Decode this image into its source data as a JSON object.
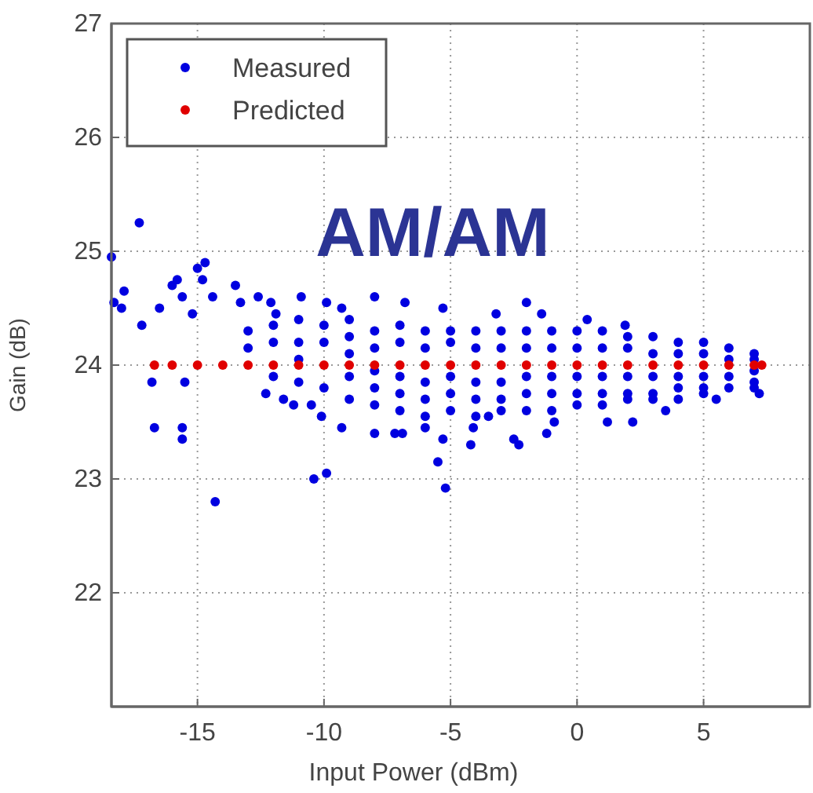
{
  "chart_data": {
    "type": "scatter",
    "xlabel": "Input Power (dBm)",
    "ylabel": "Gain (dB)",
    "annotations": [
      "AM/AM"
    ],
    "xlim": [
      -18.4,
      9.2
    ],
    "ylim": [
      21,
      27
    ],
    "xticks": [
      -15,
      -10,
      -5,
      0,
      5
    ],
    "yticks": [
      22,
      23,
      24,
      25,
      26,
      27
    ],
    "grid": true,
    "legend": "top left",
    "marker": "circle",
    "series": [
      {
        "name": "Measured",
        "color": "#0000e0",
        "x": [
          -18.4,
          -17.3,
          -18.3,
          -18.0,
          -17.9,
          -17.2,
          -16.8,
          -16.7,
          -15.6,
          -15.6,
          -15.5,
          -14.3,
          -16.5,
          -16.0,
          -15.6,
          -15.8,
          -14.7,
          -15.2,
          -15.0,
          -14.8,
          -14.4,
          -13.5,
          -13.3,
          -12.6,
          -12.1,
          -11.9,
          -10.9,
          -9.9,
          -9.3,
          -8.0,
          -6.8,
          -5.3,
          -3.2,
          -1.4,
          -2.0,
          0.4,
          1.9,
          -12.3,
          -11.6,
          -11.2,
          -10.5,
          -10.1,
          -9.3,
          -10.4,
          -9.9,
          -8.0,
          -7.2,
          -6.9,
          -6.0,
          -5.5,
          -5.2,
          -5.3,
          -4.2,
          -4.1,
          -2.5,
          -2.3,
          -1.2,
          1.2,
          2.2,
          -0.9,
          -3.5,
          3.5,
          5.5,
          7.2,
          -13,
          -13,
          -12,
          -12,
          -12,
          -11,
          -11,
          -11,
          -11,
          -10,
          -10,
          -10,
          -9,
          -9,
          -9,
          -9,
          -9,
          -8,
          -8,
          -8,
          -8,
          -8,
          -7,
          -7,
          -7,
          -7,
          -7,
          -6,
          -6,
          -6,
          -6,
          -6,
          -5,
          -5,
          -5,
          -5,
          -5,
          -4,
          -4,
          -4,
          -4,
          -4,
          -3,
          -3,
          -3,
          -3,
          -3,
          -2,
          -2,
          -2,
          -2,
          -2,
          -1,
          -1,
          -1,
          -1,
          -1,
          0,
          0,
          0,
          0,
          0,
          1,
          1,
          1,
          1,
          1,
          2,
          2,
          2,
          2,
          2,
          3,
          3,
          3,
          3,
          3,
          4,
          4,
          4,
          4,
          4,
          5,
          5,
          5,
          5,
          5,
          6,
          6,
          6,
          6,
          7,
          7,
          7,
          7,
          7
        ],
        "values": [
          24.95,
          25.25,
          24.55,
          24.5,
          24.65,
          24.35,
          23.85,
          23.45,
          23.45,
          23.35,
          23.85,
          22.8,
          24.5,
          24.7,
          24.6,
          24.75,
          24.9,
          24.45,
          24.85,
          24.75,
          24.6,
          24.7,
          24.55,
          24.6,
          24.55,
          24.45,
          24.6,
          24.55,
          24.5,
          24.6,
          24.55,
          24.5,
          24.45,
          24.45,
          24.55,
          24.4,
          24.35,
          23.75,
          23.7,
          23.65,
          23.65,
          23.55,
          23.45,
          23.0,
          23.05,
          23.4,
          23.4,
          23.4,
          23.45,
          23.15,
          22.92,
          23.35,
          23.3,
          23.45,
          23.35,
          23.3,
          23.4,
          23.5,
          23.5,
          23.5,
          23.55,
          23.6,
          23.7,
          23.75,
          24.3,
          24.15,
          24.35,
          24.2,
          23.9,
          24.4,
          24.2,
          24.05,
          23.85,
          24.35,
          24.2,
          23.8,
          24.4,
          24.25,
          24.1,
          23.9,
          23.7,
          24.3,
          24.15,
          23.95,
          23.8,
          23.65,
          24.35,
          24.2,
          23.9,
          23.75,
          23.6,
          24.3,
          24.15,
          23.85,
          23.7,
          23.55,
          24.3,
          24.2,
          23.9,
          23.75,
          23.6,
          24.3,
          24.15,
          23.85,
          23.7,
          23.55,
          24.3,
          24.15,
          23.85,
          23.7,
          23.6,
          24.3,
          24.15,
          23.9,
          23.75,
          23.6,
          24.3,
          24.15,
          23.9,
          23.75,
          23.6,
          24.3,
          24.15,
          23.9,
          23.75,
          23.65,
          24.3,
          24.15,
          23.9,
          23.75,
          23.65,
          24.25,
          24.15,
          23.9,
          23.75,
          23.7,
          24.25,
          24.1,
          23.9,
          23.75,
          23.7,
          24.2,
          24.1,
          23.9,
          23.8,
          23.7,
          24.2,
          24.1,
          23.9,
          23.8,
          23.75,
          24.15,
          24.05,
          23.9,
          23.8,
          24.1,
          24.05,
          23.95,
          23.85,
          23.8
        ]
      },
      {
        "name": "Predicted",
        "color": "#e00000",
        "x": [
          -16.7,
          -16,
          -15,
          -14,
          -13,
          -12,
          -11,
          -10,
          -9,
          -8,
          -7,
          -6,
          -5,
          -4,
          -3,
          -2,
          -1,
          0,
          1,
          2,
          3,
          4,
          5,
          6,
          7,
          7.3
        ],
        "values": [
          24,
          24,
          24,
          24,
          24,
          24,
          24,
          24,
          24,
          24,
          24,
          24,
          24,
          24,
          24,
          24,
          24,
          24,
          24,
          24,
          24,
          24,
          24,
          24,
          24,
          24
        ]
      }
    ]
  }
}
